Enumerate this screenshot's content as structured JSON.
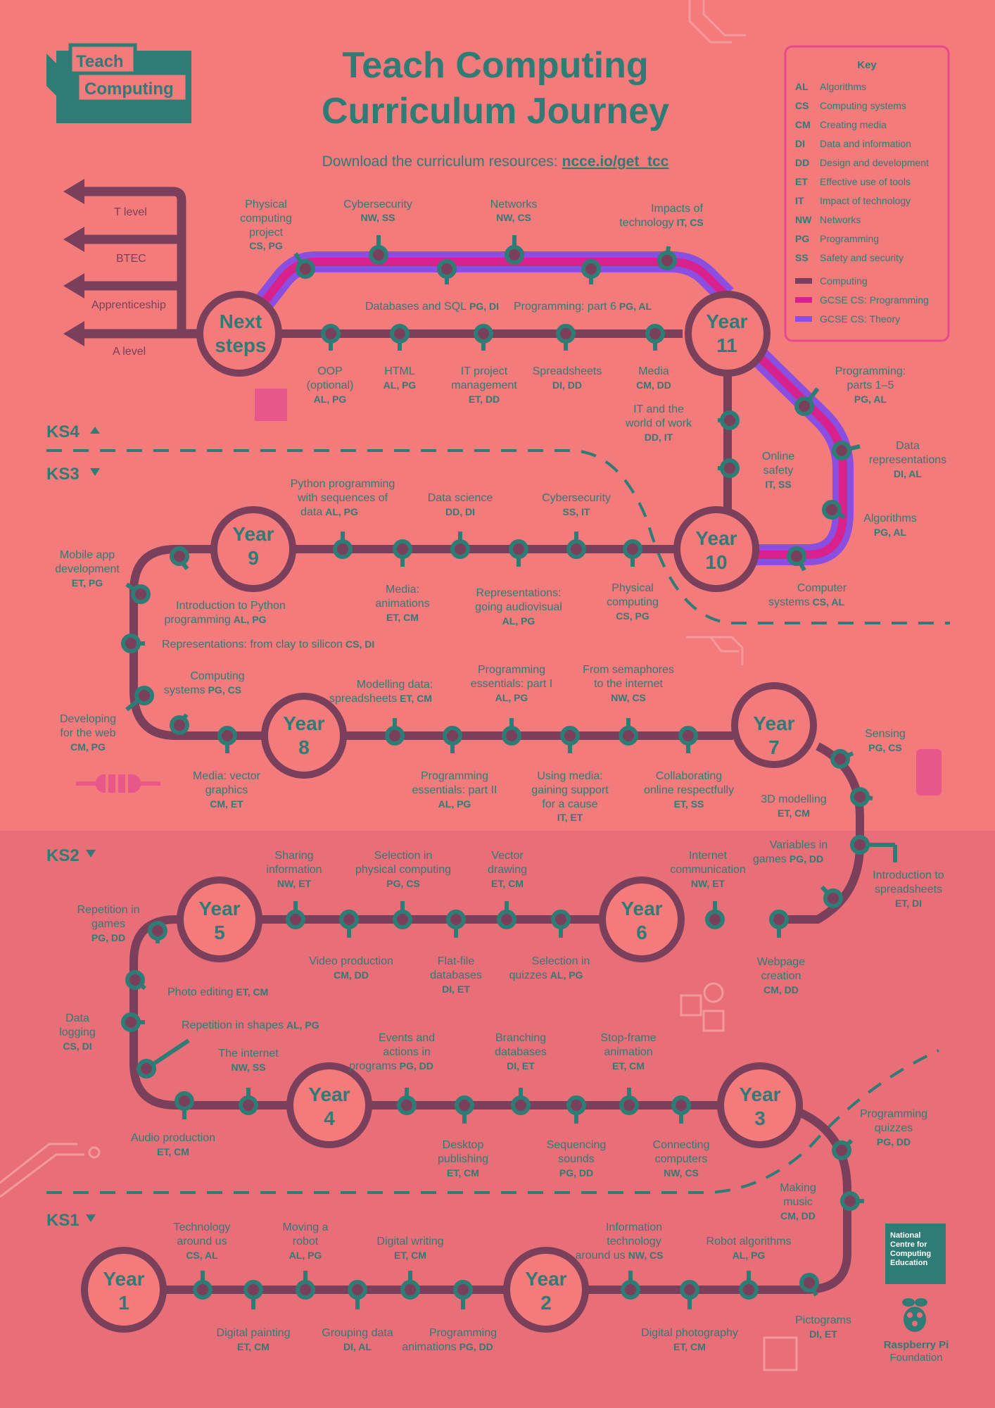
{
  "header": {
    "logo_line1": "Teach",
    "logo_line2": "Computing",
    "title_line1": "Teach Computing",
    "title_line2": "Curriculum Journey",
    "subtitle": "Download the curriculum resources:",
    "link": "ncce.io/get_tcc"
  },
  "key": {
    "title": "Key",
    "items": [
      {
        "code": "AL",
        "label": "Algorithms"
      },
      {
        "code": "CS",
        "label": "Computing systems"
      },
      {
        "code": "CM",
        "label": "Creating media"
      },
      {
        "code": "DI",
        "label": "Data and information"
      },
      {
        "code": "DD",
        "label": "Design and development"
      },
      {
        "code": "ET",
        "label": "Effective use of tools"
      },
      {
        "code": "IT",
        "label": "Impact of technology"
      },
      {
        "code": "NW",
        "label": "Networks"
      },
      {
        "code": "PG",
        "label": "Programming"
      },
      {
        "code": "SS",
        "label": "Safety and security"
      }
    ],
    "lines": [
      {
        "label": "Computing",
        "color": "#7a3f5a"
      },
      {
        "label": "GCSE CS: Programming",
        "color": "#d9218e"
      },
      {
        "label": "GCSE CS: Theory",
        "color": "#8a4ee0"
      }
    ]
  },
  "stages": {
    "ks4": "KS4",
    "ks3": "KS3",
    "ks2": "KS2",
    "ks1": "KS1"
  },
  "exits": [
    "T level",
    "BTEC",
    "Apprenticeship",
    "A level"
  ],
  "years": {
    "next": {
      "l1": "Next",
      "l2": "steps"
    },
    "y11": {
      "l1": "Year",
      "l2": "11"
    },
    "y10": {
      "l1": "Year",
      "l2": "10"
    },
    "y9": {
      "l1": "Year",
      "l2": "9"
    },
    "y8": {
      "l1": "Year",
      "l2": "8"
    },
    "y7": {
      "l1": "Year",
      "l2": "7"
    },
    "y6": {
      "l1": "Year",
      "l2": "6"
    },
    "y5": {
      "l1": "Year",
      "l2": "5"
    },
    "y4": {
      "l1": "Year",
      "l2": "4"
    },
    "y3": {
      "l1": "Year",
      "l2": "3"
    },
    "y2": {
      "l1": "Year",
      "l2": "2"
    },
    "y1": {
      "l1": "Year",
      "l2": "1"
    }
  },
  "units": {
    "u01": {
      "t1": "Physical",
      "t2": "computing",
      "t3": "project",
      "c": "CS, PG"
    },
    "u02": {
      "t1": "Cybersecurity",
      "c": "NW, SS"
    },
    "u03": {
      "t1": "Networks",
      "c": "NW, CS"
    },
    "u04": {
      "t1": "Impacts of",
      "t2": "technology",
      "c": "IT, CS"
    },
    "u05": {
      "t1": "Databases and SQL",
      "c": "PG, DI"
    },
    "u06": {
      "t1": "Programming: part 6",
      "c": "PG, AL"
    },
    "u07": {
      "t1": "OOP",
      "t2": "(optional)",
      "c": "AL, PG"
    },
    "u08": {
      "t1": "HTML",
      "c": "AL, PG"
    },
    "u09": {
      "t1": "IT project",
      "t2": "management",
      "c": "ET, DD"
    },
    "u10": {
      "t1": "Spreadsheets",
      "c": "DI, DD"
    },
    "u11": {
      "t1": "Media",
      "c": "CM, DD"
    },
    "u12": {
      "t1": "IT and the",
      "t2": "world of work",
      "c": "DD, IT"
    },
    "u13": {
      "t1": "Online",
      "t2": "safety",
      "c": "IT, SS"
    },
    "u14": {
      "t1": "Programming:",
      "t2": "parts 1–5",
      "c": "PG, AL"
    },
    "u15": {
      "t1": "Data",
      "t2": "representations",
      "c": "DI, AL"
    },
    "u16": {
      "t1": "Algorithms",
      "c": "PG, AL"
    },
    "u17": {
      "t1": "Computer",
      "t2": "systems",
      "c": "CS, AL"
    },
    "u18": {
      "t1": "Python programming",
      "t2": "with sequences of",
      "t3": "data",
      "c": "AL, PG"
    },
    "u19": {
      "t1": "Data science",
      "c": "DD, DI"
    },
    "u20": {
      "t1": "Cybersecurity",
      "c": "SS, IT"
    },
    "u21": {
      "t1": "Mobile app",
      "t2": "development",
      "c": "ET, PG"
    },
    "u22": {
      "t1": "Introduction to Python",
      "t2": "programming",
      "c": "AL, PG"
    },
    "u23": {
      "t1": "Media:",
      "t2": "animations",
      "c": "ET, CM"
    },
    "u24": {
      "t1": "Representations:",
      "t2": "going audiovisual",
      "c": "AL, PG"
    },
    "u25": {
      "t1": "Physical",
      "t2": "computing",
      "c": "CS, PG"
    },
    "u26": {
      "t1": "Representations: from clay to silicon",
      "c": "CS, DI"
    },
    "u27": {
      "t1": "Computing",
      "t2": "systems",
      "c": "PG, CS"
    },
    "u28": {
      "t1": "Modelling data:",
      "t2": "spreadsheets",
      "c": "ET, CM"
    },
    "u29": {
      "t1": "Programming",
      "t2": "essentials: part I",
      "c": "AL, PG"
    },
    "u30": {
      "t1": "From semaphores",
      "t2": "to the internet",
      "c": "NW, CS"
    },
    "u31": {
      "t1": "Developing",
      "t2": "for the web",
      "c": "CM, PG"
    },
    "u32": {
      "t1": "Media: vector",
      "t2": "graphics",
      "c": "CM, ET"
    },
    "u33": {
      "t1": "Programming",
      "t2": "essentials: part II",
      "c": "AL, PG"
    },
    "u34": {
      "t1": "Using media:",
      "t2": "gaining support",
      "t3": "for a cause",
      "c": "IT, ET"
    },
    "u35": {
      "t1": "Collaborating",
      "t2": "online respectfully",
      "c": "ET, SS"
    },
    "u36": {
      "t1": "Sensing",
      "c": "PG, CS"
    },
    "u37": {
      "t1": "3D modelling",
      "c": "ET, CM"
    },
    "u38": {
      "t1": "Variables in",
      "t2": "games",
      "c": "PG, DD"
    },
    "u39": {
      "t1": "Introduction to",
      "t2": "spreadsheets",
      "c": "ET, DI"
    },
    "u40": {
      "t1": "Sharing",
      "t2": "information",
      "c": "NW, ET"
    },
    "u41": {
      "t1": "Selection in",
      "t2": "physical computing",
      "c": "PG, CS"
    },
    "u42": {
      "t1": "Vector",
      "t2": "drawing",
      "c": "ET, CM"
    },
    "u43": {
      "t1": "Internet",
      "t2": "communication",
      "c": "NW, ET"
    },
    "u44": {
      "t1": "Repetition in",
      "t2": "games",
      "c": "PG, DD"
    },
    "u45": {
      "t1": "Video production",
      "c": "CM, DD"
    },
    "u46": {
      "t1": "Flat-file",
      "t2": "databases",
      "c": "DI, ET"
    },
    "u47": {
      "t1": "Selection in",
      "t2": "quizzes",
      "c": "AL, PG"
    },
    "u48": {
      "t1": "Webpage",
      "t2": "creation",
      "c": "CM, DD"
    },
    "u49": {
      "t1": "Photo editing",
      "c": "ET, CM"
    },
    "u50": {
      "t1": "Data",
      "t2": "logging",
      "c": "CS, DI"
    },
    "u51": {
      "t1": "Repetition in shapes",
      "c": "AL, PG"
    },
    "u52": {
      "t1": "The internet",
      "c": "NW, SS"
    },
    "u53": {
      "t1": "Events and",
      "t2": "actions in",
      "t3": "programs",
      "c": "PG, DD"
    },
    "u54": {
      "t1": "Branching",
      "t2": "databases",
      "c": "DI, ET"
    },
    "u55": {
      "t1": "Stop-frame",
      "t2": "animation",
      "c": "ET, CM"
    },
    "u56": {
      "t1": "Audio production",
      "c": "ET, CM"
    },
    "u57": {
      "t1": "Desktop",
      "t2": "publishing",
      "c": "ET, CM"
    },
    "u58": {
      "t1": "Sequencing",
      "t2": "sounds",
      "c": "PG, DD"
    },
    "u59": {
      "t1": "Connecting",
      "t2": "computers",
      "c": "NW, CS"
    },
    "u60": {
      "t1": "Programming",
      "t2": "quizzes",
      "c": "PG, DD"
    },
    "u61": {
      "t1": "Making",
      "t2": "music",
      "c": "CM, DD"
    },
    "u62": {
      "t1": "Technology",
      "t2": "around us",
      "c": "CS, AL"
    },
    "u63": {
      "t1": "Moving a",
      "t2": "robot",
      "c": "AL, PG"
    },
    "u64": {
      "t1": "Digital writing",
      "c": "ET, CM"
    },
    "u65": {
      "t1": "Information",
      "t2": "technology",
      "t3": "around us",
      "c": "NW, CS"
    },
    "u66": {
      "t1": "Robot algorithms",
      "c": "AL, PG"
    },
    "u67": {
      "t1": "Digital painting",
      "c": "ET, CM"
    },
    "u68": {
      "t1": "Grouping data",
      "c": "DI, AL"
    },
    "u69": {
      "t1": "Programming",
      "t2": "animations",
      "c": "PG, DD"
    },
    "u70": {
      "t1": "Digital photography",
      "c": "ET, CM"
    },
    "u71": {
      "t1": "Pictograms",
      "c": "DI, ET"
    }
  },
  "footer": {
    "ncce_1": "National",
    "ncce_2": "Centre for",
    "ncce_3": "Computing",
    "ncce_4": "Education",
    "rpf_1": "Raspberry Pi",
    "rpf_2": "Foundation"
  }
}
